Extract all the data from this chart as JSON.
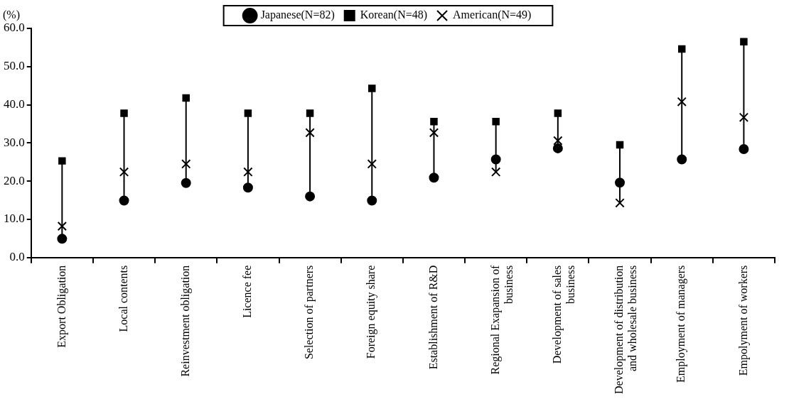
{
  "chart_data": {
    "type": "scatter",
    "ylabel": "(%)",
    "categories": [
      "Export Obligation",
      "Local contents",
      "Reinvestment obligation",
      "Licence fee",
      "Selection of partners",
      "Foreign equity share",
      "Establishment of R&D",
      "Regional Exapansion of business",
      "Development of sales business",
      "Development of distribution and wholesale business",
      "Employment of managers",
      "Empolyment of workers"
    ],
    "series": [
      {
        "name": "Japanese(N=82)",
        "color": "#000000",
        "marker": "circle",
        "values": [
          4.9,
          14.9,
          19.5,
          18.3,
          16.0,
          14.9,
          20.9,
          25.7,
          28.6,
          19.6,
          25.7,
          28.4
        ]
      },
      {
        "name": "Korean(N=48)",
        "color": "#000000",
        "marker": "square",
        "values": [
          25.3,
          37.8,
          41.8,
          37.8,
          37.8,
          44.3,
          35.6,
          35.6,
          37.8,
          29.5,
          54.6,
          56.5
        ]
      },
      {
        "name": "American(N=49)",
        "color": "#000000",
        "marker": "cross",
        "values": [
          8.2,
          22.4,
          24.5,
          22.4,
          32.7,
          24.5,
          32.7,
          22.4,
          30.6,
          14.3,
          40.8,
          36.7
        ]
      }
    ],
    "ylim": [
      0,
      60
    ],
    "yticks": [
      {
        "value": 0,
        "label": "0.0"
      },
      {
        "value": 10,
        "label": "10.0"
      },
      {
        "value": 20,
        "label": "20.0"
      },
      {
        "value": 30,
        "label": "30.0"
      },
      {
        "value": 40,
        "label": "40.0"
      },
      {
        "value": 50,
        "label": "50.0"
      },
      {
        "value": 60,
        "label": "60.0"
      }
    ],
    "grid": false,
    "legend": "top"
  }
}
